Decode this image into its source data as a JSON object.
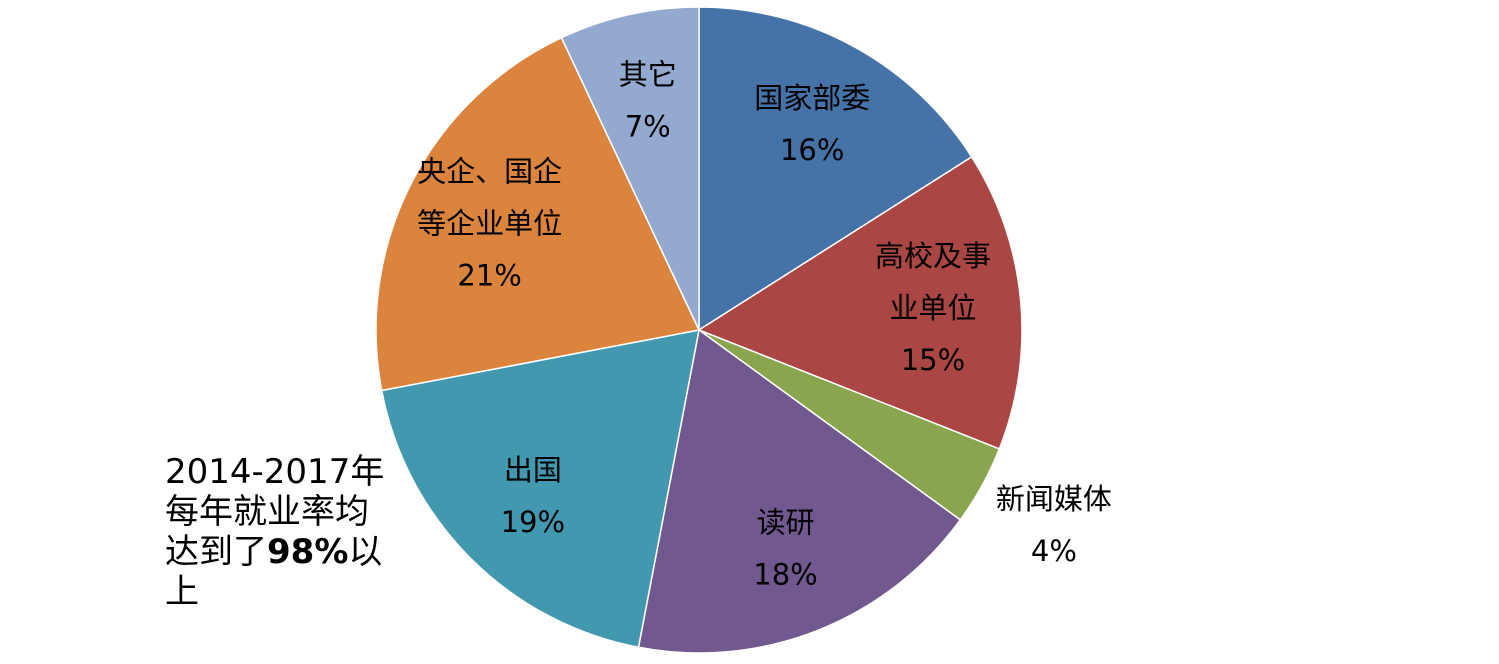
{
  "chart_data": {
    "type": "pie",
    "start": "top",
    "direction": "clockwise",
    "slices": [
      {
        "label": [
          "国家部委"
        ],
        "value": 16,
        "value_label": "16%",
        "color": "#4572A7"
      },
      {
        "label": [
          "高校及事",
          "业单位"
        ],
        "value": 15,
        "value_label": "15%",
        "color": "#AA4643"
      },
      {
        "label": [
          "新闻媒体"
        ],
        "value": 4,
        "value_label": "4%",
        "color": "#89A54E",
        "label_outside": true
      },
      {
        "label": [
          "读研"
        ],
        "value": 18,
        "value_label": "18%",
        "color": "#71588F"
      },
      {
        "label": [
          "出国"
        ],
        "value": 19,
        "value_label": "19%",
        "color": "#4198AF"
      },
      {
        "label": [
          "央企、国企",
          "等企业单位"
        ],
        "value": 21,
        "value_label": "21%",
        "color": "#DB843D"
      },
      {
        "label": [
          "其它"
        ],
        "value": 7,
        "value_label": "7%",
        "color": "#93A9CF"
      }
    ]
  },
  "annotation": {
    "line1": "2014-2017年",
    "line2": "每年就业率均",
    "line3_pre": "达到了",
    "line3_bold": "98%",
    "line3_post": "以",
    "line4": "上"
  }
}
